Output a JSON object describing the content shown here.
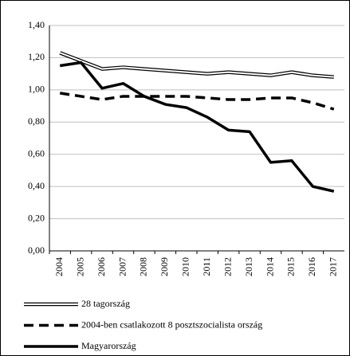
{
  "chart_data": {
    "type": "line",
    "categories": [
      "2004",
      "2005",
      "2006",
      "2007",
      "2008",
      "2009",
      "2010",
      "2011",
      "2012",
      "2013",
      "2014",
      "2015",
      "2016",
      "2017"
    ],
    "series": [
      {
        "name": "28 tagország",
        "color": "#000000",
        "style": "double",
        "values": [
          1.23,
          1.18,
          1.13,
          1.14,
          1.13,
          1.12,
          1.11,
          1.1,
          1.11,
          1.1,
          1.09,
          1.11,
          1.09,
          1.08
        ]
      },
      {
        "name": "2004-ben csatlakozott 8 posztszocialista ország",
        "color": "#000000",
        "style": "dashed",
        "values": [
          0.98,
          0.96,
          0.94,
          0.96,
          0.96,
          0.96,
          0.96,
          0.95,
          0.94,
          0.94,
          0.95,
          0.95,
          0.92,
          0.88
        ]
      },
      {
        "name": "Magyarország",
        "color": "#000000",
        "style": "solid",
        "values": [
          1.15,
          1.17,
          1.01,
          1.04,
          0.96,
          0.91,
          0.89,
          0.83,
          0.75,
          0.74,
          0.55,
          0.56,
          0.4,
          0.37
        ]
      }
    ],
    "ylim": [
      0,
      1.4
    ],
    "yticks": [
      {
        "value": 0,
        "label": "0,00"
      },
      {
        "value": 0.2,
        "label": "0,20"
      },
      {
        "value": 0.4,
        "label": "0,40"
      },
      {
        "value": 0.6,
        "label": "0,60"
      },
      {
        "value": 0.8,
        "label": "0,80"
      },
      {
        "value": 1.0,
        "label": "1,00"
      },
      {
        "value": 1.2,
        "label": "1,20"
      },
      {
        "value": 1.4,
        "label": "1,40"
      }
    ],
    "grid": true,
    "legend": "bottom"
  }
}
